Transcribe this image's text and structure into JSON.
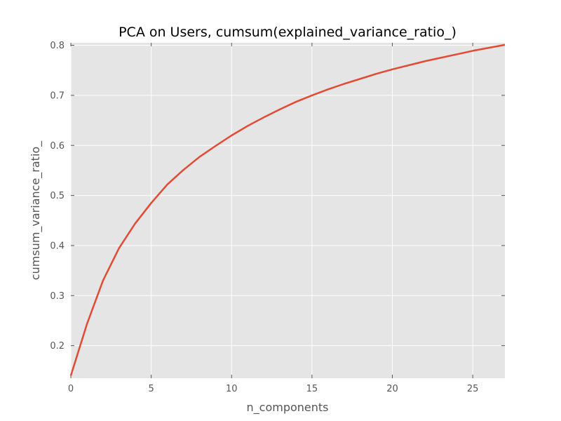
{
  "chart_data": {
    "type": "line",
    "title": "PCA on Users, cumsum(explained_variance_ratio_)",
    "xlabel": "n_components",
    "ylabel": "cumsum_variance_ratio_",
    "xlim": [
      0,
      27
    ],
    "ylim": [
      0.135,
      0.805
    ],
    "grid": true,
    "x_ticks": [
      0,
      5,
      10,
      15,
      20,
      25
    ],
    "y_ticks": [
      0.2,
      0.3,
      0.4,
      0.5,
      0.6,
      0.7,
      0.8
    ],
    "series": [
      {
        "color": "#E24A33",
        "x": [
          0,
          1,
          2,
          3,
          4,
          5,
          6,
          7,
          8,
          9,
          10,
          11,
          12,
          13,
          14,
          15,
          16,
          17,
          18,
          19,
          20,
          21,
          22,
          23,
          24,
          25,
          26,
          27
        ],
        "y": [
          0.14,
          0.243,
          0.33,
          0.395,
          0.444,
          0.485,
          0.522,
          0.551,
          0.577,
          0.599,
          0.62,
          0.639,
          0.656,
          0.672,
          0.687,
          0.7,
          0.712,
          0.723,
          0.733,
          0.743,
          0.752,
          0.76,
          0.768,
          0.775,
          0.782,
          0.789,
          0.795,
          0.801
        ]
      }
    ]
  },
  "colors": {
    "plot_background": "#E5E5E5",
    "grid": "#FFFFFF",
    "line": "#E24A33",
    "tick_text": "#555555",
    "title_text": "#000000"
  }
}
